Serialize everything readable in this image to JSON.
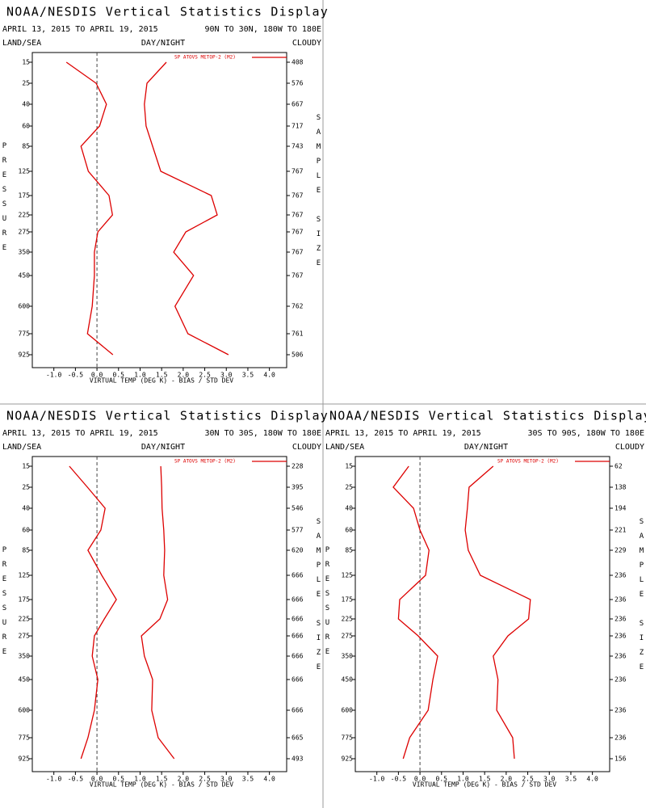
{
  "chart_data": [
    {
      "type": "line",
      "title": "NOAA/NESDIS Vertical Statistics Display",
      "subtitle": "APRIL 13, 2015 TO APRIL 19, 2015",
      "region": "90N TO 30N, 180W TO 180E",
      "land_sea": "LAND/SEA",
      "day_night": "DAY/NIGHT",
      "cloudy": "CLOUDY",
      "y_label": "PRESSURE",
      "y2_label": "SAMPLE SIZE",
      "x_label": "VIRTUAL TEMP (DEG K) - BIAS / STD DEV",
      "legend": "SP ATOVS METOP-2 (M2)",
      "categories": [
        15,
        25,
        40,
        60,
        85,
        125,
        175,
        225,
        275,
        350,
        450,
        600,
        775,
        925
      ],
      "sample_sizes": [
        408,
        576,
        667,
        717,
        743,
        767,
        767,
        767,
        767,
        767,
        767,
        762,
        761,
        506
      ],
      "series": [
        {
          "color": "#dd0000",
          "values": [
            -0.71,
            -0.02,
            0.22,
            0.06,
            -0.37,
            -0.2,
            0.28,
            0.36,
            0.02,
            -0.06,
            -0.06,
            -0.11,
            -0.22,
            0.37
          ]
        },
        {
          "color": "#dd0000",
          "values": [
            1.61,
            1.16,
            1.1,
            1.14,
            1.29,
            1.48,
            2.65,
            2.79,
            2.06,
            1.78,
            2.24,
            1.81,
            2.11,
            3.05
          ]
        }
      ],
      "xlim": [
        -1.5,
        4.4
      ],
      "xticks": [
        {
          "value": -1,
          "label": "-1.0"
        },
        -0.5,
        {
          "value": 0,
          "label": "0.0"
        },
        0.5,
        {
          "value": 1,
          "label": "1.0"
        },
        1.5,
        {
          "value": 2,
          "label": "2.0"
        },
        2.5,
        {
          "value": 3,
          "label": "3.0"
        },
        3.5,
        {
          "value": 4,
          "label": "4.0"
        }
      ]
    },
    {
      "type": "line",
      "title": "NOAA/NESDIS Vertical Statistics Display",
      "subtitle": "APRIL 13, 2015 TO APRIL 19, 2015",
      "region": "30N TO 30S, 180W TO 180E",
      "land_sea": "LAND/SEA",
      "day_night": "DAY/NIGHT",
      "cloudy": "CLOUDY",
      "y_label": "PRESSURE",
      "y2_label": "SAMPLE SIZE",
      "x_label": "VIRTUAL TEMP (DEG K) - BIAS / STD DEV",
      "legend": "SP ATOVS METOP-2 (M2)",
      "categories": [
        15,
        25,
        40,
        60,
        85,
        125,
        175,
        225,
        275,
        350,
        450,
        600,
        775,
        925
      ],
      "sample_sizes": [
        228,
        395,
        546,
        577,
        620,
        666,
        666,
        666,
        666,
        666,
        666,
        666,
        665,
        493
      ],
      "series": [
        {
          "color": "#dd0000",
          "values": [
            -0.64,
            -0.22,
            0.19,
            0.09,
            -0.21,
            0.11,
            0.45,
            0.17,
            -0.06,
            -0.11,
            0.02,
            -0.06,
            -0.21,
            -0.37
          ]
        },
        {
          "color": "#dd0000",
          "values": [
            1.48,
            1.5,
            1.51,
            1.55,
            1.57,
            1.55,
            1.64,
            1.46,
            1.03,
            1.1,
            1.29,
            1.27,
            1.42,
            1.79
          ]
        }
      ],
      "xlim": [
        -1.5,
        4.4
      ],
      "xticks": [
        {
          "value": -1,
          "label": "-1.0"
        },
        -0.5,
        {
          "value": 0,
          "label": "0.0"
        },
        0.5,
        {
          "value": 1,
          "label": "1.0"
        },
        1.5,
        {
          "value": 2,
          "label": "2.0"
        },
        2.5,
        {
          "value": 3,
          "label": "3.0"
        },
        3.5,
        {
          "value": 4,
          "label": "4.0"
        }
      ]
    },
    {
      "type": "line",
      "title": "NOAA/NESDIS Vertical Statistics Display",
      "subtitle": "APRIL 13, 2015 TO APRIL 19, 2015",
      "region": "30S TO 90S, 180W TO 180E",
      "land_sea": "LAND/SEA",
      "day_night": "DAY/NIGHT",
      "cloudy": "CLOUDY",
      "y_label": "PRESSURE",
      "y2_label": "SAMPLE SIZE",
      "x_label": "VIRTUAL TEMP (DEG K) - BIAS / STD DEV",
      "legend": "SP ATOVS METOP-2 (M2)",
      "categories": [
        15,
        25,
        40,
        60,
        85,
        125,
        175,
        225,
        275,
        350,
        450,
        600,
        775,
        925
      ],
      "sample_sizes": [
        62,
        138,
        194,
        221,
        229,
        236,
        236,
        236,
        236,
        236,
        236,
        236,
        236,
        156
      ],
      "series": [
        {
          "color": "#dd0000",
          "values": [
            -0.26,
            -0.62,
            -0.15,
            0,
            0.21,
            0.13,
            -0.47,
            -0.5,
            -0.04,
            0.41,
            0.3,
            0.19,
            -0.24,
            -0.39
          ]
        },
        {
          "color": "#dd0000",
          "values": [
            1.7,
            1.14,
            1.1,
            1.05,
            1.12,
            1.4,
            2.56,
            2.52,
            2.04,
            1.7,
            1.81,
            1.78,
            2.15,
            2.19
          ]
        }
      ],
      "xlim": [
        -1.5,
        4.4
      ],
      "xticks": [
        {
          "value": -1,
          "label": "-1.0"
        },
        -0.5,
        {
          "value": 0,
          "label": "0.0"
        },
        0.5,
        {
          "value": 1,
          "label": "1.0"
        },
        1.5,
        {
          "value": 2,
          "label": "2.0"
        },
        2.5,
        {
          "value": 3,
          "label": "3.0"
        },
        3.5,
        {
          "value": 4,
          "label": "4.0"
        }
      ]
    }
  ]
}
